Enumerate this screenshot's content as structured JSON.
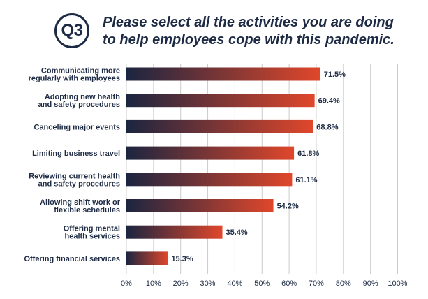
{
  "header": {
    "badge": "Q3",
    "question": "Please select all the activities you are doing to help employees cope with this pandemic."
  },
  "colors": {
    "bar_start": "#1b2540",
    "bar_end": "#e0472b",
    "grid": "#cccccc",
    "text": "#1d2a44"
  },
  "chart_data": {
    "type": "bar",
    "orientation": "horizontal",
    "categories": [
      [
        "Communicating more",
        "regularly with employees"
      ],
      [
        "Adopting new health",
        "and safety procedures"
      ],
      [
        "Canceling major events"
      ],
      [
        "Limiting business travel"
      ],
      [
        "Reviewing current health",
        "and safety procedures"
      ],
      [
        "Allowing shift work or",
        "flexible schedules"
      ],
      [
        "Offering mental",
        "health services"
      ],
      [
        "Offering financial services"
      ]
    ],
    "values": [
      71.5,
      69.4,
      68.8,
      61.8,
      61.1,
      54.2,
      35.4,
      15.3
    ],
    "value_labels": [
      "71.5%",
      "69.4%",
      "68.8%",
      "61.8%",
      "61.1%",
      "54.2%",
      "35.4%",
      "15.3%"
    ],
    "xlim": [
      0,
      100
    ],
    "ticks": [
      0,
      10,
      20,
      30,
      40,
      50,
      60,
      70,
      80,
      90,
      100
    ],
    "tick_labels": [
      "0%",
      "10%",
      "20%",
      "30%",
      "40%",
      "50%",
      "60%",
      "70%",
      "80%",
      "90%",
      "100%"
    ],
    "grid": true
  }
}
